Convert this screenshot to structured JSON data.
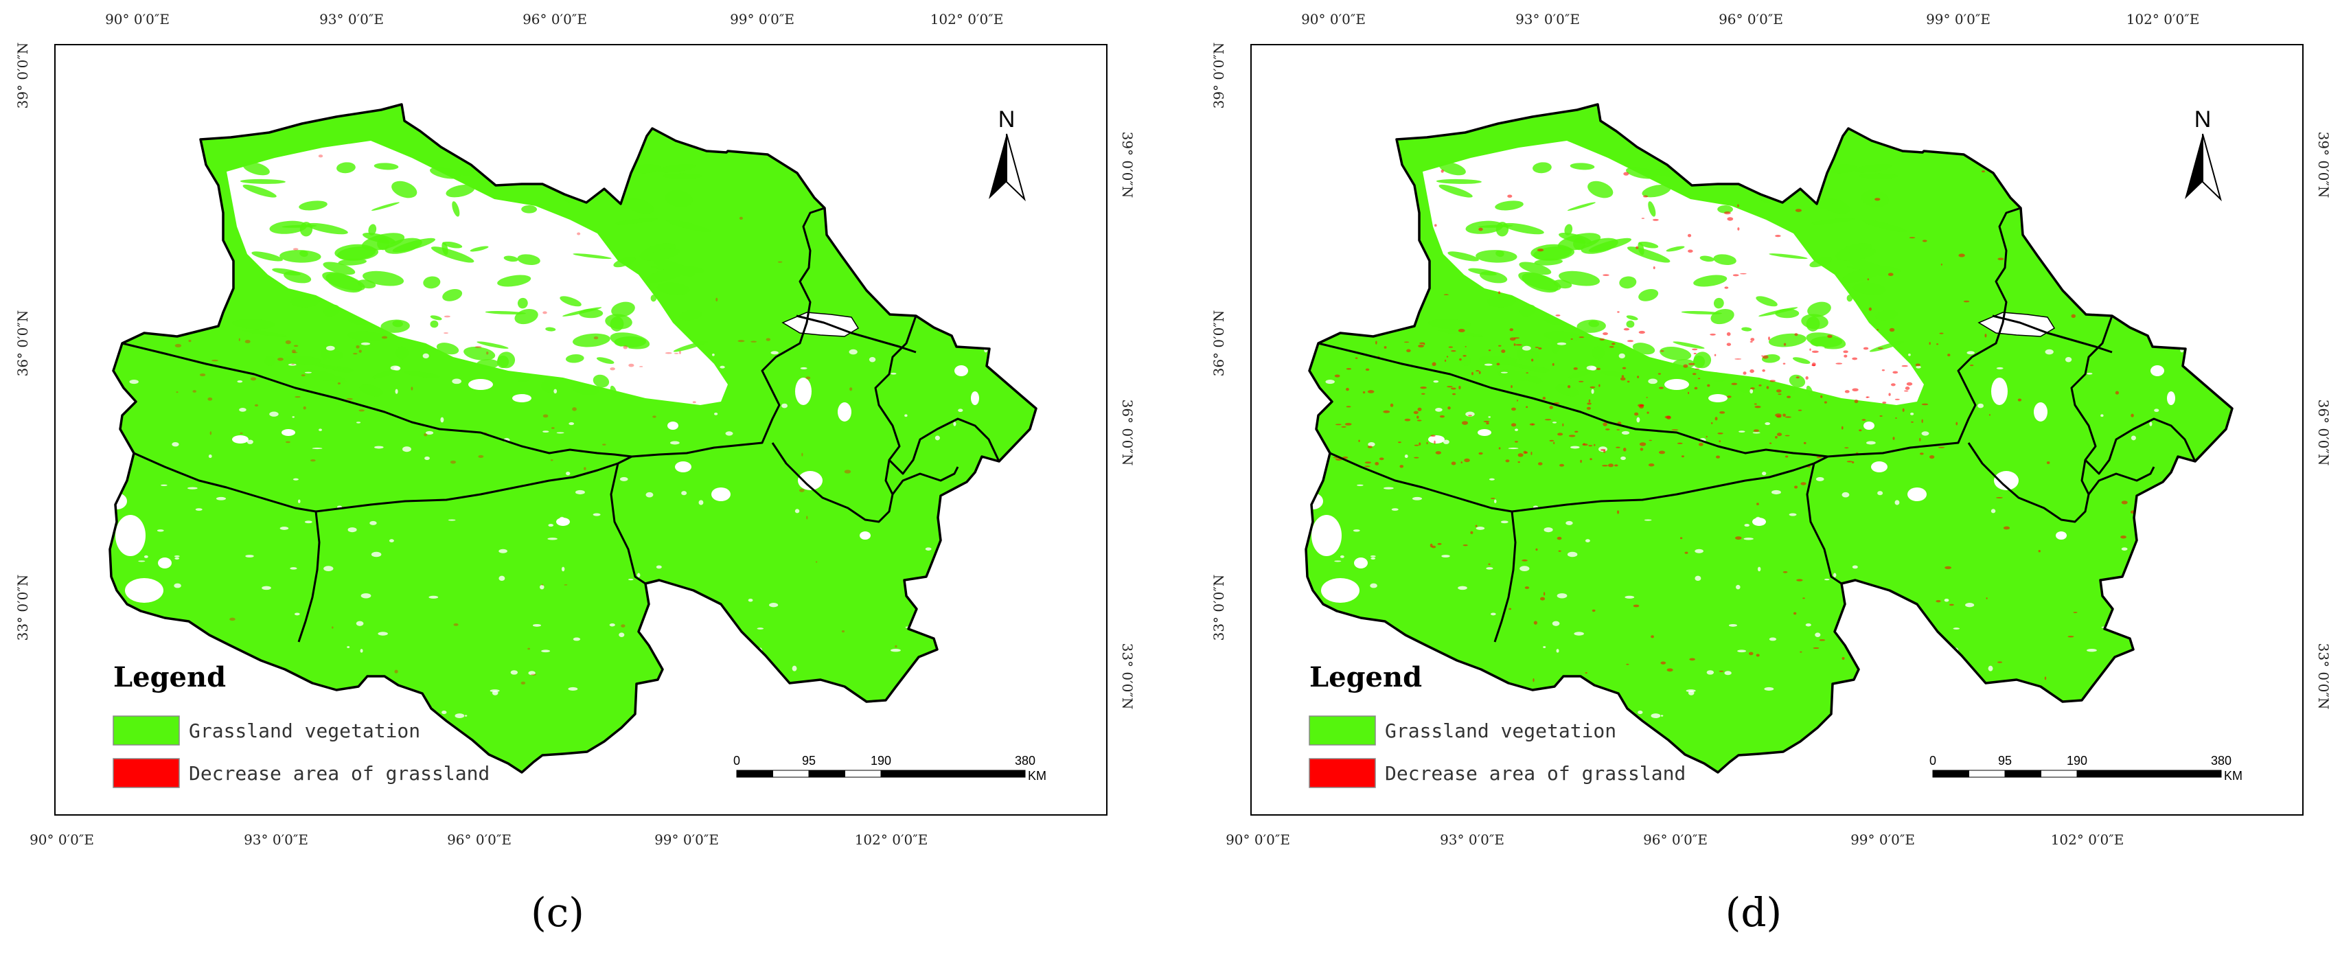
{
  "colors": {
    "grassland": "#55f50d",
    "decrease": "#ff0000",
    "border": "#000000",
    "background": "#ffffff"
  },
  "lon_ticks": [
    "90° 0′0″E",
    "93° 0′0″E",
    "96° 0′0″E",
    "99° 0′0″E",
    "102° 0′0″E"
  ],
  "lat_ticks_left": [
    "39° 0′0″N",
    "36° 0′0″N",
    "33° 0′0″N"
  ],
  "lat_ticks_right": [
    "39° 0′0″N",
    "36° 0′0″N",
    "33° 0′0″N"
  ],
  "north_arrow": {
    "label": "N",
    "icon": "north-arrow-icon"
  },
  "legend": {
    "title": "Legend",
    "items": [
      {
        "label": "Grassland vegetation",
        "color": "#55f50d"
      },
      {
        "label": "Decrease area of grassland",
        "color": "#ff0000"
      }
    ]
  },
  "scale_bar": {
    "labels": [
      "0",
      "95",
      "190",
      "380"
    ],
    "unit": "KM"
  },
  "panels": [
    {
      "id": "c",
      "caption": "(c)",
      "decrease_level": "low"
    },
    {
      "id": "d",
      "caption": "(d)",
      "decrease_level": "high"
    }
  ]
}
